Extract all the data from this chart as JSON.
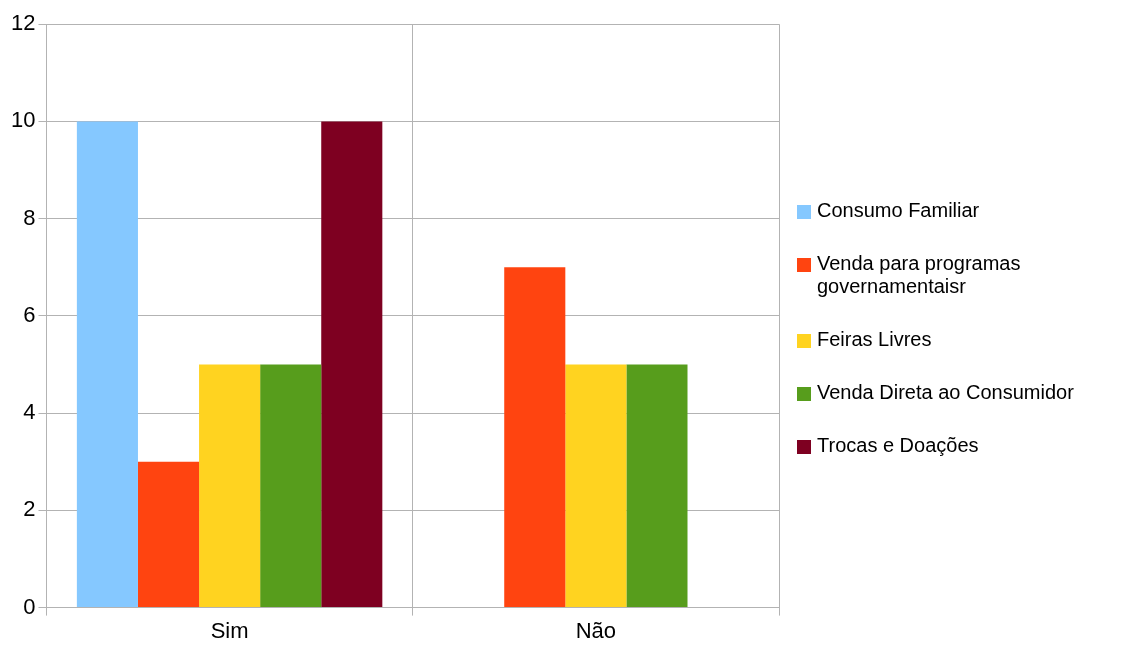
{
  "chart_data": {
    "type": "bar",
    "categories": [
      "Sim",
      "Não"
    ],
    "series": [
      {
        "name": "Consumo Familiar",
        "color": "#85c8ff",
        "values": [
          10,
          0
        ]
      },
      {
        "name": "Venda para programas governamentaisr",
        "color": "#ff4410",
        "values": [
          3,
          7
        ]
      },
      {
        "name": "Feiras Livres",
        "color": "#ffd320",
        "values": [
          5,
          5
        ]
      },
      {
        "name": "Venda Direta ao Consumidor",
        "color": "#579d1c",
        "values": [
          5,
          5
        ]
      },
      {
        "name": "Trocas e Doações",
        "color": "#7e0021",
        "values": [
          10,
          0
        ]
      }
    ],
    "ylim": [
      0,
      12
    ],
    "yticks": [
      0,
      2,
      4,
      6,
      8,
      10,
      12
    ],
    "grid": true,
    "legend": "right"
  }
}
